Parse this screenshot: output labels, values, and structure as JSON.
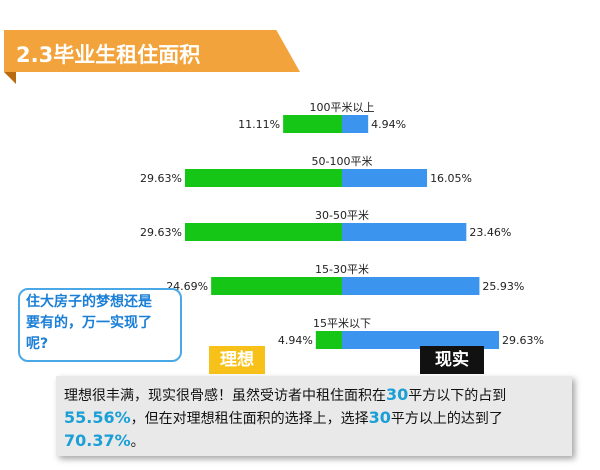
{
  "header": {
    "title": "2.3毕业生租住面积"
  },
  "chart_data": {
    "type": "bar",
    "categories": [
      "100平米以上",
      "50-100平米",
      "30-50平米",
      "15-30平米",
      "15平米以下"
    ],
    "series": [
      {
        "name": "理想",
        "values": [
          11.11,
          29.63,
          29.63,
          24.69,
          4.94
        ],
        "labels": [
          "11.11%",
          "29.63%",
          "29.63%",
          "24.69%",
          "4.94%"
        ]
      },
      {
        "name": "现实",
        "values": [
          4.94,
          16.05,
          23.46,
          25.93,
          29.63
        ],
        "labels": [
          "4.94%",
          "16.05%",
          "23.46%",
          "25.93%",
          "29.63%"
        ]
      }
    ],
    "colors": {
      "ideal": "#16c616",
      "real": "#3b94ee"
    }
  },
  "bubble": {
    "line1": "住大房子的梦想还是",
    "line2": "要有的，万一实现了",
    "line3": "呢?"
  },
  "tags": {
    "ideal": "理想",
    "real": "现实"
  },
  "note": {
    "p1": "理想很丰满，现实很骨感！虽然受访者中租住面积在",
    "n1": "30",
    "p2": "平方以下的占到",
    "v1": "55.56%",
    "p3": "，但在对理想租住面积的选择上，选择",
    "n2": "30",
    "p4": "平方以上的达到了",
    "v2": "70.37%",
    "p5": "。"
  }
}
